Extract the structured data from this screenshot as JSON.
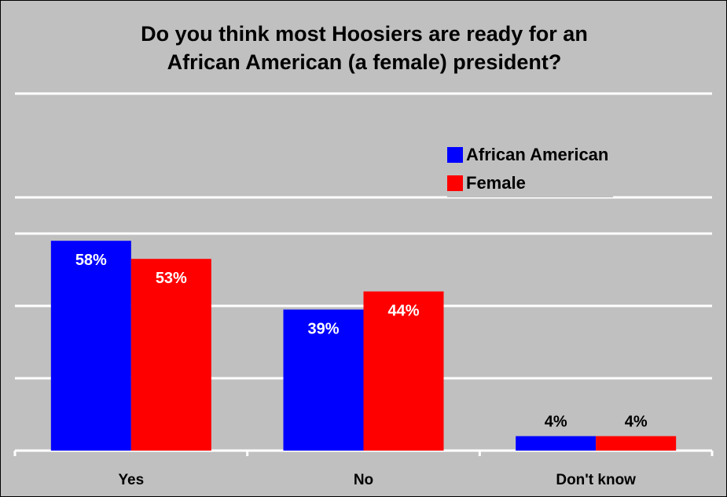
{
  "chart_data": {
    "type": "bar",
    "title_lines": [
      "Do you think most Hoosiers are ready for an",
      "African American (a female) president?"
    ],
    "categories": [
      "Yes",
      "No",
      "Don't know"
    ],
    "series": [
      {
        "name": "African American",
        "color": "#0000ff",
        "values": [
          58,
          39,
          4
        ],
        "labels": [
          "58%",
          "39%",
          "4%"
        ],
        "label_colors": [
          "#ffffff",
          "#ffffff",
          "#000000"
        ]
      },
      {
        "name": "Female",
        "color": "#ff0000",
        "values": [
          53,
          44,
          4
        ],
        "labels": [
          "53%",
          "44%",
          "4%"
        ],
        "label_colors": [
          "#ffffff",
          "#ffffff",
          "#000000"
        ]
      }
    ],
    "ylim": [
      0,
      70
    ],
    "gridlines": [
      20,
      40,
      60
    ],
    "grid": true,
    "legend_position": "top-right",
    "background": "#c0c0c0",
    "gridline_color": "#ffffff"
  }
}
